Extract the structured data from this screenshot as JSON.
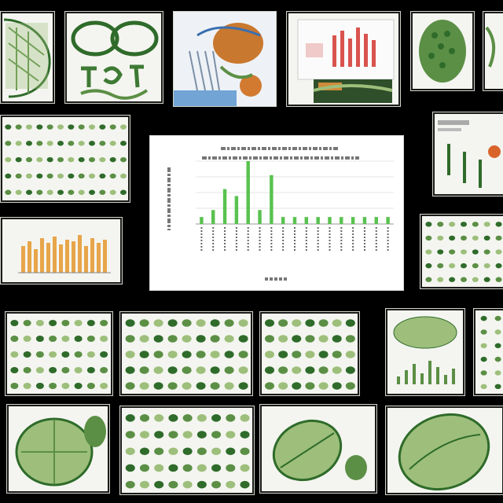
{
  "colors": {
    "background": "#000000",
    "card": "#f4f5f0",
    "leaf_dark": "#2f6b2a",
    "leaf_mid": "#5b8f45",
    "leaf_light": "#9dbf7b",
    "bar_green": "#59c24f",
    "bar_orange": "#e8a54a",
    "bar_red": "#d9534f"
  },
  "thumbnails": [
    {
      "name": "leaf-vein-thumbnail",
      "kind": "leaf"
    },
    {
      "name": "leaf-pattern-thumbnail",
      "kind": "pattern"
    },
    {
      "name": "anatomy-diagram-thumbnail",
      "kind": "diagram"
    },
    {
      "name": "bar-photo-thumbnail",
      "kind": "barphoto"
    },
    {
      "name": "leaf-oval-thumbnail",
      "kind": "oval"
    },
    {
      "name": "partial-thumbnail-top-right",
      "kind": "partial"
    },
    {
      "name": "spotted-pattern-thumbnail",
      "kind": "spots"
    },
    {
      "name": "plant-figure-thumbnail",
      "kind": "plants"
    },
    {
      "name": "orange-bar-chart-thumbnail",
      "kind": "orangebars"
    },
    {
      "name": "leaf-spot-grid-thumbnail",
      "kind": "spots"
    },
    {
      "name": "leaf-spot-grid-thumbnail-2",
      "kind": "spots"
    },
    {
      "name": "leaf-spot-grid-thumbnail-3",
      "kind": "spots"
    },
    {
      "name": "leaf-spot-grid-thumbnail-4",
      "kind": "spots"
    },
    {
      "name": "small-bar-chart-thumbnail",
      "kind": "smallbars"
    },
    {
      "name": "partial-thumbnail-right",
      "kind": "partial"
    },
    {
      "name": "leaf-oval-thumbnail-2",
      "kind": "oval"
    },
    {
      "name": "leaf-oval-thumbnail-3",
      "kind": "oval"
    },
    {
      "name": "leaf-oval-thumbnail-4",
      "kind": "oval"
    },
    {
      "name": "leaf-oval-thumbnail-5",
      "kind": "oval"
    }
  ],
  "center_chart": {
    "type": "bar",
    "series_count": 1,
    "values": [
      1,
      2,
      5,
      4,
      9,
      2,
      7,
      1,
      1,
      1,
      1,
      1,
      1,
      1,
      1,
      1,
      1
    ]
  }
}
